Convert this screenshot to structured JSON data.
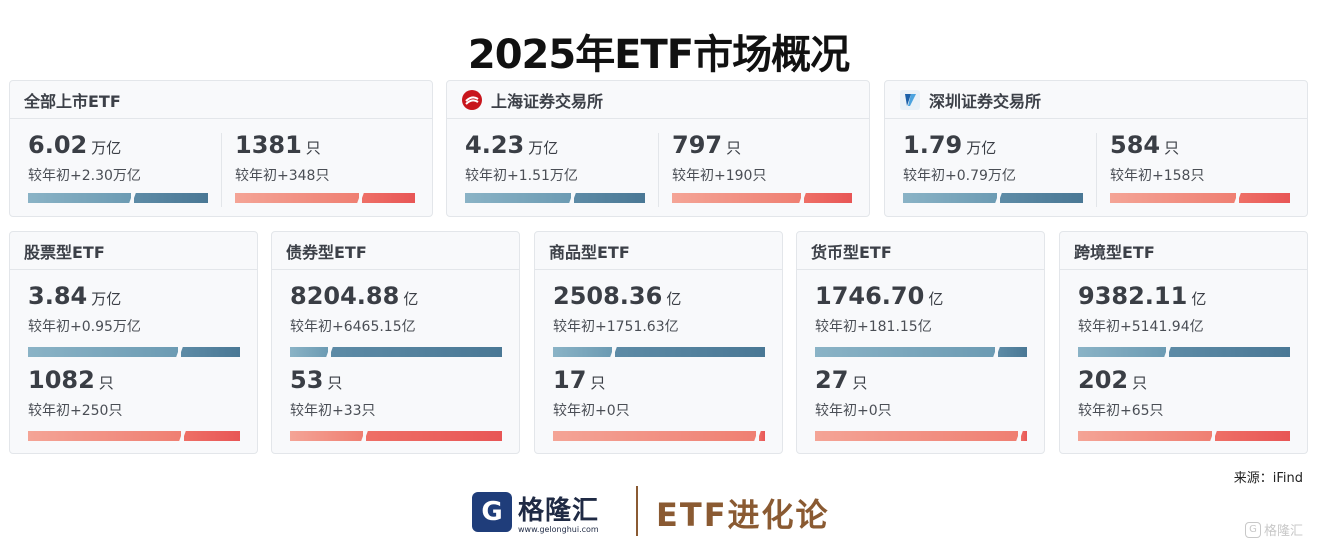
{
  "title": "2025年ETF市场概况",
  "top_cards": [
    {
      "name": "全部上市ETF",
      "scale": "6.02",
      "scale_unit": "万亿",
      "scale_delta": "较年初+2.30万亿",
      "count": "1381",
      "count_unit": "只",
      "count_delta": "较年初+348只",
      "scale_ratio": 0.58,
      "count_ratio": 0.7
    },
    {
      "name": "上海证券交易所",
      "logo": "sse-logo-icon",
      "scale": "4.23",
      "scale_unit": "万亿",
      "scale_delta": "较年初+1.51万亿",
      "count": "797",
      "count_unit": "只",
      "count_delta": "较年初+190只",
      "scale_ratio": 0.6,
      "count_ratio": 0.73
    },
    {
      "name": "深圳证券交易所",
      "logo": "szse-logo-icon",
      "scale": "1.79",
      "scale_unit": "万亿",
      "scale_delta": "较年初+0.79万亿",
      "count": "584",
      "count_unit": "只",
      "count_delta": "较年初+158只",
      "scale_ratio": 0.53,
      "count_ratio": 0.71
    }
  ],
  "bottom_cards": [
    {
      "name": "股票型ETF",
      "scale": "3.84",
      "scale_unit": "万亿",
      "scale_delta": "较年初+0.95万亿",
      "count": "1082",
      "count_unit": "只",
      "count_delta": "较年初+250只",
      "scale_ratio": 0.72,
      "count_ratio": 0.73
    },
    {
      "name": "债券型ETF",
      "scale": "8204.88",
      "scale_unit": "亿",
      "scale_delta": "较年初+6465.15亿",
      "count": "53",
      "count_unit": "只",
      "count_delta": "较年初+33只",
      "scale_ratio": 0.18,
      "count_ratio": 0.35
    },
    {
      "name": "商品型ETF",
      "scale": "2508.36",
      "scale_unit": "亿",
      "scale_delta": "较年初+1751.63亿",
      "count": "17",
      "count_unit": "只",
      "count_delta": "较年初+0只",
      "scale_ratio": 0.28,
      "count_ratio": 0.97
    },
    {
      "name": "货币型ETF",
      "scale": "1746.70",
      "scale_unit": "亿",
      "scale_delta": "较年初+181.15亿",
      "count": "27",
      "count_unit": "只",
      "count_delta": "较年初+0只",
      "scale_ratio": 0.86,
      "count_ratio": 0.97
    },
    {
      "name": "跨境型ETF",
      "scale": "9382.11",
      "scale_unit": "亿",
      "scale_delta": "较年初+5141.94亿",
      "count": "202",
      "count_unit": "只",
      "count_delta": "较年初+65只",
      "scale_ratio": 0.42,
      "count_ratio": 0.64
    }
  ],
  "source": "来源：iFind",
  "footer": {
    "brand_cn": "格隆汇",
    "brand_url": "www.gelonghui.com",
    "brand_logo_letter": "G",
    "column_name": "ETF进化论"
  },
  "watermark": {
    "icon_text": "G",
    "text": "格隆汇"
  },
  "colors": {
    "scale_light": "#8ab3c6",
    "scale_dark": "#4a7895",
    "count_light": "#f4a496",
    "count_dark": "#e85656",
    "footer_brown": "#8a5a32",
    "brand_blue": "#1f3d7a"
  }
}
